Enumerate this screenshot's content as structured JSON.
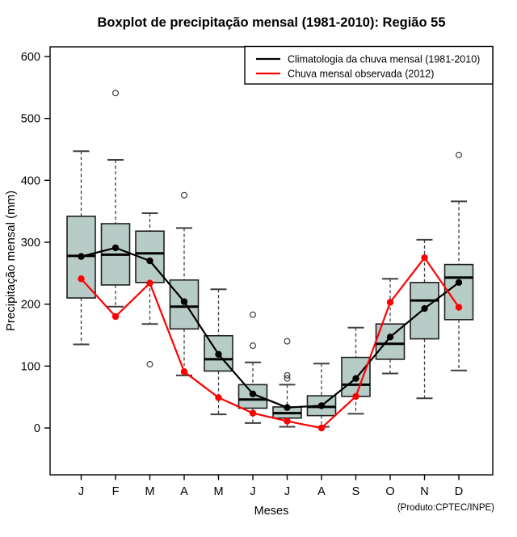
{
  "title": "Boxplot de precipitação mensal (1981-2010): Região 55",
  "credit": "(Produto:CPTEC/INPE)",
  "chart_data": {
    "type": "boxplot",
    "title": "Boxplot de precipitação mensal (1981-2010): Região 55",
    "xlabel": "Meses",
    "ylabel": "Precipitação mensal (mm)",
    "ylim": [
      0,
      600
    ],
    "yticks": [
      0,
      100,
      200,
      300,
      400,
      500,
      600
    ],
    "grid": "off",
    "legend_position": "top-right",
    "box_fill": "#b8ccc7",
    "box_stroke": "#1f1f1f",
    "whisker_color": "#3f3f3f",
    "outlier_color": "#3a3a3a",
    "categories": [
      "J",
      "F",
      "M",
      "A",
      "M",
      "J",
      "J",
      "A",
      "S",
      "O",
      "N",
      "D"
    ],
    "boxes": [
      {
        "month": "J",
        "whisker_low": 135,
        "q1": 210,
        "median": 278,
        "q3": 342,
        "whisker_high": 447,
        "outliers": []
      },
      {
        "month": "F",
        "whisker_low": 196,
        "q1": 231,
        "median": 280,
        "q3": 330,
        "whisker_high": 433,
        "outliers": [
          541
        ]
      },
      {
        "month": "M",
        "whisker_low": 168,
        "q1": 235,
        "median": 282,
        "q3": 318,
        "whisker_high": 347,
        "outliers": [
          103
        ]
      },
      {
        "month": "A",
        "whisker_low": 85,
        "q1": 160,
        "median": 196,
        "q3": 239,
        "whisker_high": 323,
        "outliers": [
          376
        ]
      },
      {
        "month": "M",
        "whisker_low": 22,
        "q1": 92,
        "median": 111,
        "q3": 149,
        "whisker_high": 224,
        "outliers": []
      },
      {
        "month": "J",
        "whisker_low": 8,
        "q1": 32,
        "median": 46,
        "q3": 70,
        "whisker_high": 106,
        "outliers": [
          183,
          133
        ]
      },
      {
        "month": "J",
        "whisker_low": 2,
        "q1": 16,
        "median": 24,
        "q3": 34,
        "whisker_high": 70,
        "outliers": [
          140,
          85,
          80
        ]
      },
      {
        "month": "A",
        "whisker_low": 2,
        "q1": 20,
        "median": 34,
        "q3": 52,
        "whisker_high": 104,
        "outliers": []
      },
      {
        "month": "S",
        "whisker_low": 23,
        "q1": 51,
        "median": 70,
        "q3": 114,
        "whisker_high": 162,
        "outliers": []
      },
      {
        "month": "O",
        "whisker_low": 88,
        "q1": 111,
        "median": 136,
        "q3": 168,
        "whisker_high": 241,
        "outliers": []
      },
      {
        "month": "N",
        "whisker_low": 48,
        "q1": 144,
        "median": 206,
        "q3": 235,
        "whisker_high": 304,
        "outliers": []
      },
      {
        "month": "D",
        "whisker_low": 93,
        "q1": 175,
        "median": 243,
        "q3": 264,
        "whisker_high": 366,
        "outliers": [
          441
        ]
      }
    ],
    "series": [
      {
        "name": "Climatologia da chuva mensal (1981-2010)",
        "color": "#000000",
        "values": [
          277,
          291,
          270,
          204,
          119,
          55,
          33,
          36,
          80,
          147,
          193,
          235
        ]
      },
      {
        "name": "Chuva mensal observada (2012)",
        "color": "#ff0000",
        "values": [
          241,
          180,
          234,
          91,
          49,
          24,
          11,
          0,
          51,
          203,
          275,
          195
        ]
      }
    ]
  }
}
